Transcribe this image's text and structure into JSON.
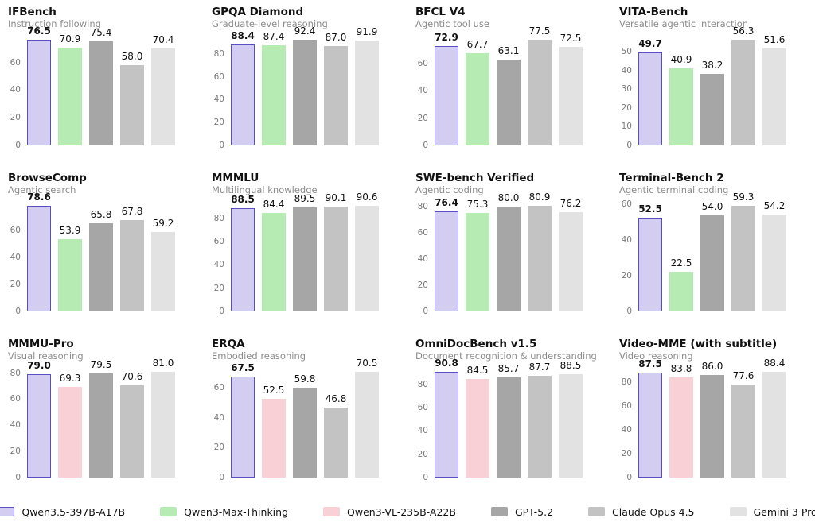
{
  "legend": {
    "items": [
      {
        "name": "Qwen3.5-397B-A17B",
        "color": "#d3cdf2",
        "border": "#5a4ec4"
      },
      {
        "name": "Qwen3-Max-Thinking",
        "color": "#b6ecb4",
        "border": null
      },
      {
        "name": "Qwen3-VL-235B-A22B",
        "color": "#fad0d7",
        "border": null
      },
      {
        "name": "GPT-5.2",
        "color": "#a6a6a6",
        "border": null
      },
      {
        "name": "Claude Opus 4.5",
        "color": "#c3c3c3",
        "border": null
      },
      {
        "name": "Gemini 3 Pro",
        "color": "#e2e2e2",
        "border": null
      }
    ]
  },
  "chart_data": [
    {
      "type": "bar",
      "title": "IFBench",
      "subtitle": "Instruction following",
      "categories": [
        "Qwen3.5-397B-A17B",
        "Qwen3-Max-Thinking",
        "GPT-5.2",
        "Claude Opus 4.5",
        "Gemini 3 Pro"
      ],
      "values": [
        76.5,
        70.9,
        75.4,
        58.0,
        70.4
      ],
      "yticks": [
        0,
        20,
        40,
        60
      ],
      "ylim": [
        0,
        76.5
      ],
      "grid": false,
      "legend_position": "bottom-shared"
    },
    {
      "type": "bar",
      "title": "GPQA Diamond",
      "subtitle": "Graduate-level reasoning",
      "categories": [
        "Qwen3.5-397B-A17B",
        "Qwen3-Max-Thinking",
        "GPT-5.2",
        "Claude Opus 4.5",
        "Gemini 3 Pro"
      ],
      "values": [
        88.4,
        87.4,
        92.4,
        87.0,
        91.9
      ],
      "yticks": [
        0,
        20,
        40,
        60,
        80
      ],
      "ylim": [
        0,
        92.4
      ],
      "grid": false,
      "legend_position": "bottom-shared"
    },
    {
      "type": "bar",
      "title": "BFCL V4",
      "subtitle": "Agentic tool use",
      "categories": [
        "Qwen3.5-397B-A17B",
        "Qwen3-Max-Thinking",
        "GPT-5.2",
        "Claude Opus 4.5",
        "Gemini 3 Pro"
      ],
      "values": [
        72.9,
        67.7,
        63.1,
        77.5,
        72.5
      ],
      "yticks": [
        0,
        20,
        40,
        60
      ],
      "ylim": [
        0,
        77.5
      ],
      "grid": false,
      "legend_position": "bottom-shared"
    },
    {
      "type": "bar",
      "title": "VITA-Bench",
      "subtitle": "Versatile agentic interaction",
      "categories": [
        "Qwen3.5-397B-A17B",
        "Qwen3-Max-Thinking",
        "GPT-5.2",
        "Claude Opus 4.5",
        "Gemini 3 Pro"
      ],
      "values": [
        49.7,
        40.9,
        38.2,
        56.3,
        51.6
      ],
      "yticks": [
        0,
        10,
        20,
        30,
        40,
        50
      ],
      "ylim": [
        0,
        56.3
      ],
      "grid": false,
      "legend_position": "bottom-shared"
    },
    {
      "type": "bar",
      "title": "BrowseComp",
      "subtitle": "Agentic search",
      "categories": [
        "Qwen3.5-397B-A17B",
        "Qwen3-Max-Thinking",
        "GPT-5.2",
        "Claude Opus 4.5",
        "Gemini 3 Pro"
      ],
      "values": [
        78.6,
        53.9,
        65.8,
        67.8,
        59.2
      ],
      "yticks": [
        0,
        20,
        40,
        60
      ],
      "ylim": [
        0,
        78.6
      ],
      "grid": false,
      "legend_position": "bottom-shared"
    },
    {
      "type": "bar",
      "title": "MMMLU",
      "subtitle": "Multilingual knowledge",
      "categories": [
        "Qwen3.5-397B-A17B",
        "Qwen3-Max-Thinking",
        "GPT-5.2",
        "Claude Opus 4.5",
        "Gemini 3 Pro"
      ],
      "values": [
        88.5,
        84.4,
        89.5,
        90.1,
        90.6
      ],
      "yticks": [
        0,
        20,
        40,
        60,
        80
      ],
      "ylim": [
        0,
        90.6
      ],
      "grid": false,
      "legend_position": "bottom-shared"
    },
    {
      "type": "bar",
      "title": "SWE-bench Verified",
      "subtitle": "Agentic coding",
      "categories": [
        "Qwen3.5-397B-A17B",
        "Qwen3-Max-Thinking",
        "GPT-5.2",
        "Claude Opus 4.5",
        "Gemini 3 Pro"
      ],
      "values": [
        76.4,
        75.3,
        80.0,
        80.9,
        76.2
      ],
      "yticks": [
        0,
        20,
        40,
        60,
        80
      ],
      "ylim": [
        0,
        80.9
      ],
      "grid": false,
      "legend_position": "bottom-shared"
    },
    {
      "type": "bar",
      "title": "Terminal-Bench 2",
      "subtitle": "Agentic terminal coding",
      "categories": [
        "Qwen3.5-397B-A17B",
        "Qwen3-Max-Thinking",
        "GPT-5.2",
        "Claude Opus 4.5",
        "Gemini 3 Pro"
      ],
      "values": [
        52.5,
        22.5,
        54.0,
        59.3,
        54.2
      ],
      "yticks": [
        0,
        20,
        40,
        60
      ],
      "ylim": [
        0,
        60
      ],
      "grid": false,
      "legend_position": "bottom-shared"
    },
    {
      "type": "bar",
      "title": "MMMU-Pro",
      "subtitle": "Visual reasoning",
      "categories": [
        "Qwen3.5-397B-A17B",
        "Qwen3-VL-235B-A22B",
        "GPT-5.2",
        "Claude Opus 4.5",
        "Gemini 3 Pro"
      ],
      "values": [
        79.0,
        69.3,
        79.5,
        70.6,
        81.0
      ],
      "yticks": [
        0,
        20,
        40,
        60,
        80
      ],
      "ylim": [
        0,
        81.0
      ],
      "grid": false,
      "legend_position": "bottom-shared"
    },
    {
      "type": "bar",
      "title": "ERQA",
      "subtitle": "Embodied reasoning",
      "categories": [
        "Qwen3.5-397B-A17B",
        "Qwen3-VL-235B-A22B",
        "GPT-5.2",
        "Claude Opus 4.5",
        "Gemini 3 Pro"
      ],
      "values": [
        67.5,
        52.5,
        59.8,
        46.8,
        70.5
      ],
      "yticks": [
        0,
        20,
        40,
        60
      ],
      "ylim": [
        0,
        70.5
      ],
      "grid": false,
      "legend_position": "bottom-shared"
    },
    {
      "type": "bar",
      "title": "OmniDocBench v1.5",
      "subtitle": "Document recognition & understanding",
      "categories": [
        "Qwen3.5-397B-A17B",
        "Qwen3-VL-235B-A22B",
        "GPT-5.2",
        "Claude Opus 4.5",
        "Gemini 3 Pro"
      ],
      "values": [
        90.8,
        84.5,
        85.7,
        87.7,
        88.5
      ],
      "yticks": [
        0,
        20,
        40,
        60,
        80
      ],
      "ylim": [
        0,
        90.8
      ],
      "grid": false,
      "legend_position": "bottom-shared"
    },
    {
      "type": "bar",
      "title": "Video-MME (with subtitle)",
      "subtitle": "Video reasoning",
      "categories": [
        "Qwen3.5-397B-A17B",
        "Qwen3-VL-235B-A22B",
        "GPT-5.2",
        "Claude Opus 4.5",
        "Gemini 3 Pro"
      ],
      "values": [
        87.5,
        83.8,
        86.0,
        77.6,
        88.4
      ],
      "yticks": [
        0,
        20,
        40,
        60,
        80
      ],
      "ylim": [
        0,
        88.4
      ],
      "grid": false,
      "legend_position": "bottom-shared"
    }
  ]
}
